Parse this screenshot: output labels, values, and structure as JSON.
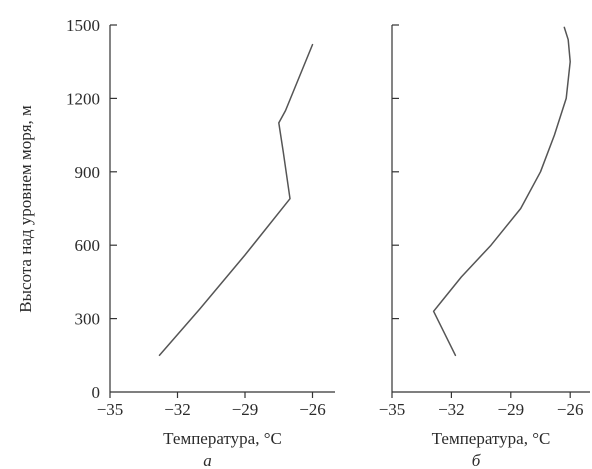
{
  "chart_data": [
    {
      "type": "line",
      "panel_label": "а",
      "xlabel": "Температура, °C",
      "ylabel": "Высота над уровнем моря, м",
      "xlim": [
        -35,
        -25
      ],
      "ylim": [
        0,
        1500
      ],
      "xticks": [
        -35,
        -32,
        -29,
        -26
      ],
      "yticks": [
        0,
        300,
        600,
        900,
        1200,
        1500
      ],
      "x_tick_labels": [
        "−35",
        "−32",
        "−29",
        "−26"
      ],
      "y_tick_labels": [
        "0",
        "300",
        "600",
        "900",
        "1200",
        "1500"
      ],
      "series": [
        {
          "x": [
            -32.8,
            -31.0,
            -29.0,
            -27.0,
            -27.3,
            -27.5,
            -27.2,
            -26.0
          ],
          "y": [
            150,
            340,
            560,
            790,
            980,
            1100,
            1150,
            1420
          ]
        }
      ]
    },
    {
      "type": "line",
      "panel_label": "б",
      "xlabel": "Температура, °C",
      "ylabel": "",
      "xlim": [
        -35,
        -25
      ],
      "ylim": [
        0,
        1500
      ],
      "xticks": [
        -35,
        -32,
        -29,
        -26
      ],
      "x_tick_labels": [
        "−35",
        "−32",
        "−29",
        "−26"
      ],
      "series": [
        {
          "x": [
            -31.8,
            -32.9,
            -32.5,
            -31.5,
            -30.0,
            -28.5,
            -27.5,
            -26.8,
            -26.2,
            -26.0,
            -26.1,
            -26.3
          ],
          "y": [
            150,
            330,
            370,
            470,
            600,
            750,
            900,
            1050,
            1200,
            1350,
            1440,
            1490
          ]
        }
      ]
    }
  ],
  "style": {
    "line_color": "#555555",
    "axis_color": "#333333",
    "text_color": "#2b2b2b"
  }
}
